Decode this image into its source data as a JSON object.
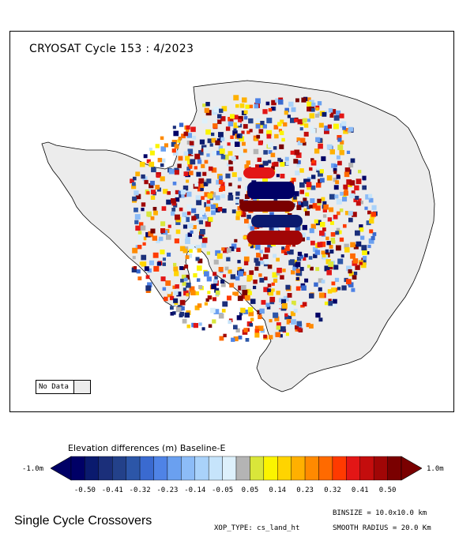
{
  "map": {
    "title": "CRYOSAT Cycle 153 : 4/2023",
    "no_data_label": "No Data",
    "no_data_color": "#ececec"
  },
  "colorbar": {
    "title": "Elevation differences (m) Baseline-E",
    "left_end_label": "-1.0m",
    "right_end_label": "1.0m",
    "tick_labels": [
      "-0.50",
      "-0.41",
      "-0.32",
      "-0.23",
      "-0.14",
      "-0.05",
      "0.05",
      "0.14",
      "0.23",
      "0.32",
      "0.41",
      "0.50"
    ],
    "colors": [
      "#000066",
      "#0a1a6e",
      "#1b2f7a",
      "#23418a",
      "#2c56a8",
      "#3a6ad0",
      "#4f83e6",
      "#6aa0f0",
      "#8cbcf7",
      "#a9d2fa",
      "#c6e4fb",
      "#ddf0fb",
      "#b4b4b4",
      "#d9e63a",
      "#fbf400",
      "#ffd400",
      "#ffb000",
      "#ff8a00",
      "#ff6a00",
      "#ff3a00",
      "#e31616",
      "#c40d0d",
      "#a10606",
      "#7a0000"
    ]
  },
  "footer": {
    "title": "Single Cycle Crossovers",
    "xop_type": "XOP_TYPE: cs_land_ht",
    "binsize": "BINSIZE = 10.0x10.0 km",
    "smooth_radius": "SMOOTH RADIUS =  20.0 Km"
  }
}
